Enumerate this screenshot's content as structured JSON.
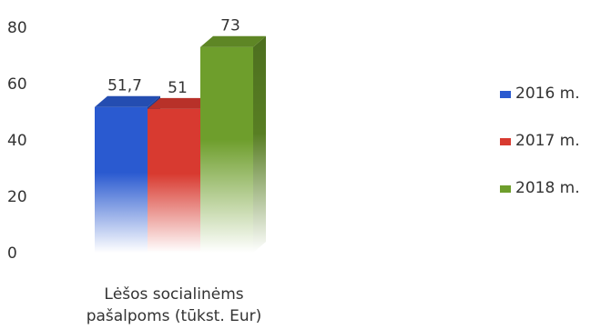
{
  "chart_data": {
    "type": "bar",
    "style": "3d-clustered",
    "categories": [
      "Lėšos socialinėms pašalpoms (tūkst. Eur)"
    ],
    "category_label_lines": [
      "Lėšos socialinėms",
      "pašalpoms (tūkst. Eur)"
    ],
    "series": [
      {
        "name": "2016 m.",
        "values": [
          51.7
        ],
        "label": "51,7",
        "color": "#2a5ad0"
      },
      {
        "name": "2017 m.",
        "values": [
          51
        ],
        "label": "51",
        "color": "#d83a30"
      },
      {
        "name": "2018 m.",
        "values": [
          73
        ],
        "label": "73",
        "color": "#6e9e2c"
      }
    ],
    "yticks": [
      "0",
      "20",
      "40",
      "60",
      "80"
    ],
    "ylim": [
      0,
      80
    ],
    "grid": false,
    "legend_position": "right",
    "title": "",
    "xlabel": "",
    "ylabel": ""
  }
}
